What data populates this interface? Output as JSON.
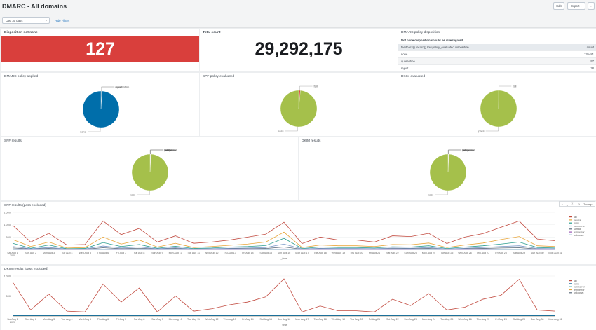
{
  "header": {
    "title": "DMARC - All domains",
    "edit_label": "Edit",
    "export_label": "Export",
    "more_label": "...",
    "time_range": "Last 30 days",
    "hide_filters": "Hide Filters"
  },
  "panels": {
    "disposition": {
      "title": "Disposition not none",
      "value": "127"
    },
    "total": {
      "title": "Total count",
      "value": "29,292,175"
    },
    "policy_disposition": {
      "title": "DMARC policy disposition",
      "subtitle": "Not none disposition should be investigated",
      "col1": "feedback{}.record{}.row.policy_evaluated.disposition",
      "col2": "count",
      "rows": [
        {
          "name": "none",
          "count": "135481"
        },
        {
          "name": "quarantine",
          "count": "97"
        },
        {
          "name": "reject",
          "count": "38"
        }
      ]
    },
    "policy_applied": {
      "title": "DMARC policy applied"
    },
    "spf_eval": {
      "title": "SPF policy evaluated"
    },
    "dkim_eval": {
      "title": "DKIM evaluated"
    },
    "spf_results": {
      "title": "SPF results"
    },
    "dkim_results": {
      "title": "DKIM results"
    },
    "spf_line": {
      "title": "SPF results (pass excluded)"
    },
    "dkim_line": {
      "title": "DKIM results (pass excluded)"
    }
  },
  "chart_icons": {
    "zoom": "search-icon",
    "download": "download-icon",
    "refresh": "refresh-icon",
    "time": "7m ago"
  },
  "chart_data": [
    {
      "type": "pie",
      "name": "DMARC policy applied",
      "labels": [
        "reject",
        "quarantine",
        "none"
      ],
      "values": [
        0.4,
        0.6,
        99.0
      ],
      "colors": [
        "#1a6a9b",
        "#1a6a9b",
        "#006eaa"
      ]
    },
    {
      "type": "pie",
      "name": "SPF policy evaluated",
      "labels": [
        "fail",
        "pass"
      ],
      "values": [
        1.5,
        98.5
      ],
      "colors": [
        "#d6473f",
        "#a5c04b"
      ]
    },
    {
      "type": "pie",
      "name": "DKIM evaluated",
      "labels": [
        "fail",
        "pass"
      ],
      "values": [
        0.3,
        99.7
      ],
      "colors": [
        "#d6473f",
        "#a5c04b"
      ]
    },
    {
      "type": "pie",
      "name": "SPF results",
      "labels": [
        "unknown",
        "temperror",
        "permerror",
        "softfail",
        "fail",
        "none",
        "pass"
      ],
      "values": [
        0.1,
        0.1,
        0.1,
        0.1,
        0.2,
        0.2,
        99.2
      ],
      "colors": [
        "#6a5c9e",
        "#e8a539",
        "#8ab0d8",
        "#2a9d8f",
        "#d6473f",
        "#6b8e3a",
        "#a5c04b"
      ]
    },
    {
      "type": "pie",
      "name": "DKIM results",
      "labels": [
        "unknown",
        "temperror",
        "permerror",
        "fail",
        "none",
        "pass"
      ],
      "values": [
        0.1,
        0.1,
        0.1,
        0.2,
        0.2,
        99.3
      ],
      "colors": [
        "#6a5c9e",
        "#e8a539",
        "#8ab0d8",
        "#d6473f",
        "#6b8e3a",
        "#a5c04b"
      ]
    },
    {
      "type": "line",
      "name": "SPF results (pass excluded)",
      "categories": [
        "Sat Aug 1 2020",
        "Sun Aug 2",
        "Mon Aug 3",
        "Tue Aug 4",
        "Wed Aug 5",
        "Thu Aug 6",
        "Fri Aug 7",
        "Sat Aug 8",
        "Sun Aug 9",
        "Mon Aug 10",
        "Tue Aug 11",
        "Wed Aug 12",
        "Thu Aug 13",
        "Fri Aug 14",
        "Sat Aug 15",
        "Sun Aug 16",
        "Mon Aug 17",
        "Tue Aug 18",
        "Wed Aug 19",
        "Thu Aug 20",
        "Fri Aug 21",
        "Sat Aug 22",
        "Sun Aug 23",
        "Mon Aug 24",
        "Tue Aug 25",
        "Wed Aug 26",
        "Thu Aug 27",
        "Fri Aug 28",
        "Sat Aug 29",
        "Sun Aug 30",
        "Mon Aug 31"
      ],
      "xlabel": "_time",
      "yticks": [
        "1,500",
        "1,000",
        "500"
      ],
      "ylim": [
        0,
        1500
      ],
      "series": [
        {
          "name": "fail",
          "color": "#c24b40",
          "values": [
            980,
            300,
            650,
            180,
            200,
            1150,
            600,
            850,
            300,
            550,
            250,
            300,
            380,
            500,
            620,
            1100,
            240,
            500,
            380,
            380,
            300,
            550,
            520,
            650,
            240,
            500,
            640,
            900,
            1150,
            420,
            350
          ]
        },
        {
          "name": "neutral",
          "color": "#e8a539",
          "values": [
            400,
            120,
            300,
            60,
            80,
            500,
            220,
            380,
            100,
            250,
            80,
            120,
            170,
            220,
            300,
            700,
            80,
            180,
            150,
            150,
            120,
            200,
            190,
            260,
            80,
            180,
            260,
            400,
            520,
            150,
            120
          ]
        },
        {
          "name": "none",
          "color": "#2a9d8f",
          "values": [
            250,
            50,
            180,
            30,
            40,
            280,
            120,
            200,
            50,
            130,
            40,
            60,
            100,
            120,
            160,
            450,
            40,
            100,
            80,
            80,
            60,
            110,
            100,
            150,
            40,
            100,
            150,
            220,
            300,
            80,
            60
          ]
        },
        {
          "name": "permerror",
          "color": "#7b9ac9",
          "values": [
            120,
            30,
            80,
            20,
            20,
            140,
            60,
            100,
            30,
            70,
            20,
            30,
            50,
            60,
            80,
            220,
            20,
            50,
            40,
            40,
            30,
            60,
            50,
            80,
            20,
            50,
            80,
            120,
            150,
            40,
            30
          ]
        },
        {
          "name": "softfail",
          "color": "#5d6d7e",
          "values": [
            60,
            20,
            40,
            10,
            10,
            70,
            30,
            50,
            20,
            40,
            10,
            20,
            30,
            30,
            40,
            100,
            10,
            30,
            20,
            20,
            20,
            30,
            30,
            40,
            10,
            30,
            40,
            60,
            70,
            20,
            20
          ]
        },
        {
          "name": "temperror",
          "color": "#9b59b6",
          "values": [
            10,
            5,
            10,
            5,
            5,
            10,
            5,
            10,
            5,
            10,
            5,
            5,
            5,
            5,
            10,
            20,
            5,
            5,
            5,
            5,
            5,
            5,
            5,
            10,
            5,
            5,
            5,
            10,
            10,
            5,
            5
          ]
        },
        {
          "name": "unknown",
          "color": "#1a6a9b",
          "values": [
            5,
            5,
            5,
            5,
            5,
            5,
            5,
            5,
            5,
            5,
            5,
            5,
            5,
            5,
            5,
            5,
            5,
            5,
            5,
            5,
            5,
            5,
            5,
            5,
            5,
            5,
            5,
            5,
            5,
            5,
            5
          ]
        }
      ]
    },
    {
      "type": "line",
      "name": "DKIM results (pass excluded)",
      "categories": [
        "Sat Aug 1 2020",
        "Sun Aug 2",
        "Mon Aug 3",
        "Tue Aug 4",
        "Wed Aug 5",
        "Thu Aug 6",
        "Fri Aug 7",
        "Sat Aug 8",
        "Sun Aug 9",
        "Mon Aug 10",
        "Tue Aug 11",
        "Wed Aug 12",
        "Thu Aug 13",
        "Fri Aug 14",
        "Sat Aug 15",
        "Sun Aug 16",
        "Mon Aug 17",
        "Tue Aug 18",
        "Wed Aug 19",
        "Thu Aug 20",
        "Fri Aug 21",
        "Sat Aug 22",
        "Sun Aug 23",
        "Mon Aug 24",
        "Tue Aug 25",
        "Wed Aug 26",
        "Thu Aug 27",
        "Fri Aug 28",
        "Sat Aug 29",
        "Sun Aug 30",
        "Mon Aug 31"
      ],
      "xlabel": "_time",
      "yticks": [
        "1,000",
        "500"
      ],
      "ylim": [
        0,
        1000
      ],
      "series": [
        {
          "name": "fail",
          "color": "#c24b40",
          "values": [
            850,
            150,
            550,
            120,
            100,
            800,
            350,
            700,
            100,
            500,
            120,
            180,
            280,
            350,
            480,
            930,
            100,
            250,
            130,
            130,
            100,
            420,
            260,
            560,
            150,
            220,
            420,
            520,
            920,
            150,
            120
          ]
        },
        {
          "name": "none",
          "color": "#1a6a9b",
          "values": [
            10,
            10,
            10,
            10,
            10,
            10,
            10,
            10,
            10,
            10,
            10,
            10,
            10,
            10,
            10,
            10,
            10,
            10,
            10,
            10,
            10,
            10,
            10,
            10,
            10,
            10,
            10,
            10,
            10,
            10,
            10
          ]
        },
        {
          "name": "permerror",
          "color": "#2a9d8f",
          "values": [
            8,
            8,
            8,
            8,
            8,
            8,
            8,
            8,
            8,
            8,
            8,
            8,
            8,
            8,
            8,
            8,
            8,
            8,
            8,
            8,
            8,
            8,
            8,
            8,
            8,
            8,
            8,
            8,
            8,
            8,
            8
          ]
        },
        {
          "name": "temperror",
          "color": "#e8a539",
          "values": [
            4,
            4,
            4,
            4,
            4,
            4,
            4,
            4,
            4,
            4,
            4,
            4,
            4,
            4,
            4,
            4,
            4,
            4,
            4,
            4,
            4,
            4,
            4,
            4,
            4,
            4,
            4,
            4,
            4,
            4,
            4
          ]
        },
        {
          "name": "unknown",
          "color": "#5d6d7e",
          "values": [
            2,
            2,
            2,
            2,
            2,
            2,
            2,
            2,
            2,
            2,
            2,
            2,
            2,
            2,
            2,
            2,
            2,
            2,
            2,
            2,
            2,
            2,
            2,
            2,
            2,
            2,
            2,
            2,
            2,
            2,
            2
          ]
        }
      ]
    }
  ]
}
